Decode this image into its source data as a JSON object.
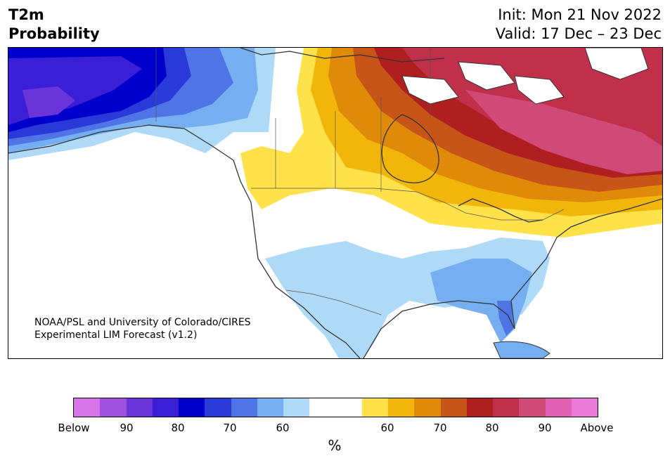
{
  "title": {
    "left_line1": "T2m",
    "left_line2": "Probability",
    "right_line1": "Init: Mon 21 Nov 2022",
    "right_line2": "Valid: 17 Dec – 23 Dec"
  },
  "credit": {
    "line1": "NOAA/PSL and University of Colorado/CIRES",
    "line2": "Experimental LIM Forecast (v1.2)"
  },
  "colorbar": {
    "unit": "%",
    "colors": [
      "#d674e8",
      "#a050e0",
      "#6a35d8",
      "#3a1fd6",
      "#0000cc",
      "#2a3ad8",
      "#4f74e6",
      "#76aef2",
      "#aedaf8",
      "#ffffff",
      "#ffffff",
      "#ffe14a",
      "#f2b50a",
      "#e08a0a",
      "#c75518",
      "#b01f20",
      "#c0304a",
      "#d04a78",
      "#df5fb0",
      "#e87ad8"
    ],
    "tick_labels": [
      "Below",
      "90",
      "80",
      "70",
      "60",
      "60",
      "70",
      "80",
      "90",
      "Above"
    ]
  },
  "map": {
    "land_color": "#ffffff",
    "water_color": "#ffffff",
    "legend": {
      "below_probability_colors": [
        "#0000cc",
        "#3a1fd6",
        "#4f74e6",
        "#76aef2",
        "#aedaf8"
      ],
      "above_probability_colors": [
        "#ffe14a",
        "#f2b50a",
        "#e08a0a",
        "#c75518",
        "#b01f20",
        "#c0304a",
        "#d04a78"
      ]
    }
  }
}
